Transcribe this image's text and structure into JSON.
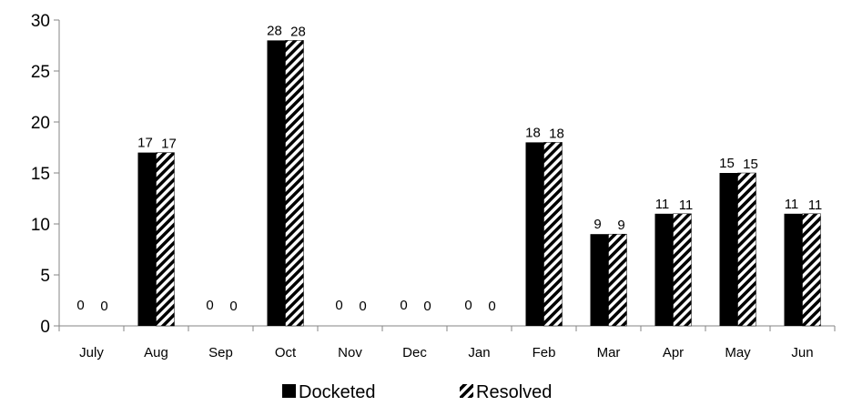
{
  "chart_data": {
    "type": "bar",
    "title": "",
    "xlabel": "",
    "ylabel": "",
    "categories": [
      "July",
      "Aug",
      "Sep",
      "Oct",
      "Nov",
      "Dec",
      "Jan",
      "Feb",
      "Mar",
      "Apr",
      "May",
      "Jun"
    ],
    "series": [
      {
        "name": "Docketed",
        "values": [
          0,
          17,
          0,
          28,
          0,
          0,
          0,
          18,
          9,
          11,
          15,
          11
        ],
        "fill": "solid",
        "color": "#000000"
      },
      {
        "name": "Resolved",
        "values": [
          0,
          17,
          0,
          28,
          0,
          0,
          0,
          18,
          9,
          11,
          15,
          11
        ],
        "fill": "diagonal-hatch",
        "color": "#000000"
      }
    ],
    "ylim": [
      0,
      30
    ],
    "yticks": [
      0,
      5,
      10,
      15,
      20,
      25,
      30
    ],
    "grid": false,
    "data_labels": true,
    "legend_position": "bottom"
  }
}
